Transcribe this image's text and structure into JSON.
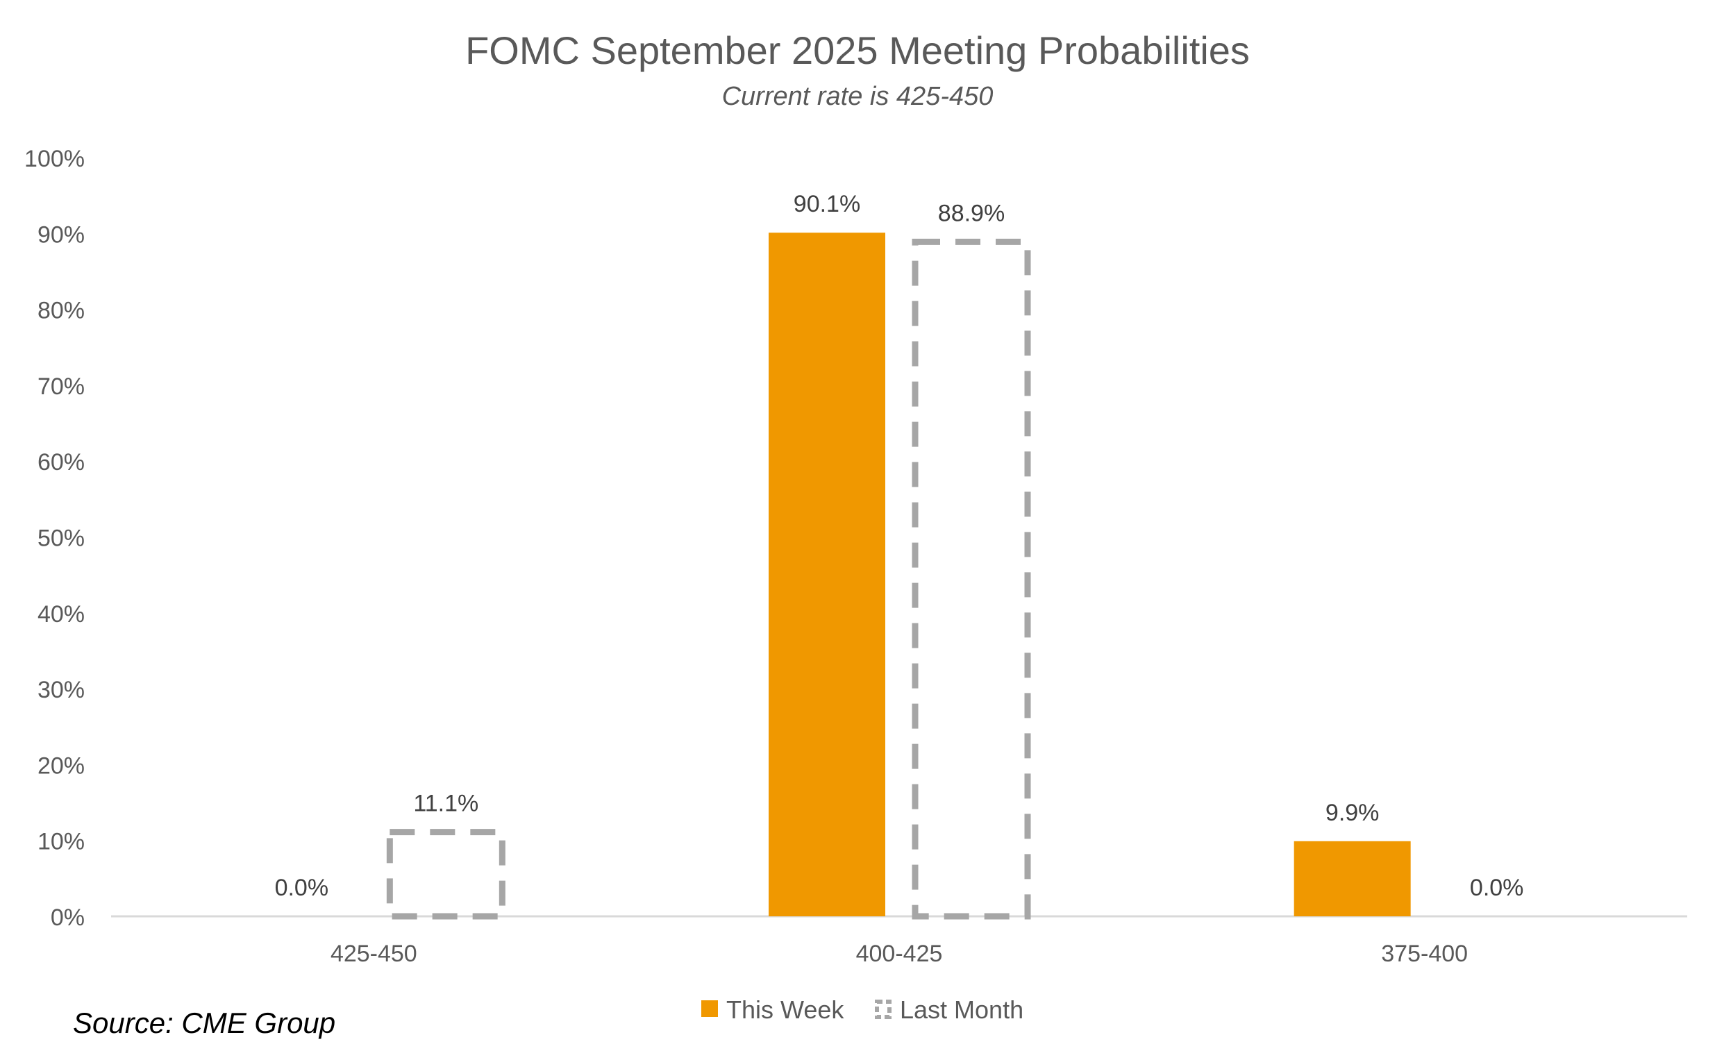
{
  "chart_data": {
    "type": "bar",
    "title": "FOMC September 2025 Meeting Probabilities",
    "subtitle": "Current rate is 425-450",
    "source": "Source: CME Group",
    "categories": [
      "425-450",
      "400-425",
      "375-400"
    ],
    "series": [
      {
        "name": "This Week",
        "values": [
          0.0,
          90.1,
          9.9
        ],
        "labels": [
          "0.0%",
          "90.1%",
          "9.9%"
        ],
        "color": "#F09800",
        "style": "solid"
      },
      {
        "name": "Last Month",
        "values": [
          11.1,
          88.9,
          0.0
        ],
        "labels": [
          "11.1%",
          "88.9%",
          "0.0%"
        ],
        "color": "#A6A6A6",
        "style": "dashed-outline"
      }
    ],
    "ylim": [
      0,
      100
    ],
    "yticks": [
      0,
      10,
      20,
      30,
      40,
      50,
      60,
      70,
      80,
      90,
      100
    ],
    "ytick_labels": [
      "0%",
      "10%",
      "20%",
      "30%",
      "40%",
      "50%",
      "60%",
      "70%",
      "80%",
      "90%",
      "100%"
    ],
    "xlabel": "",
    "ylabel": "",
    "grid": false,
    "legend_position": "bottom"
  }
}
